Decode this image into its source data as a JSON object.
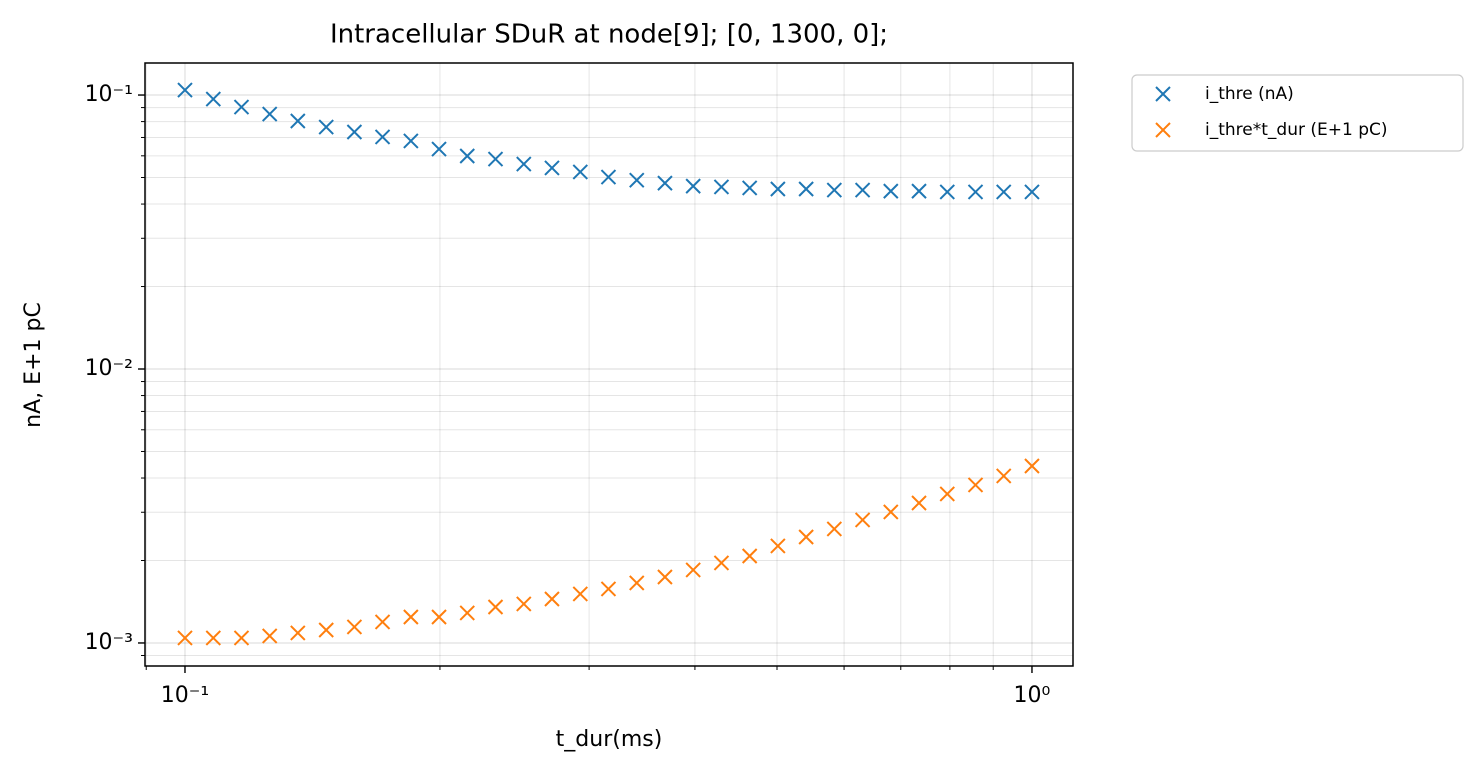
{
  "chart_data": {
    "type": "scatter",
    "title": "Intracellular SDuR at node[9]; [0, 1300, 0];",
    "x_label": "t_dur(ms)",
    "y_label": "nA, E+1 pC",
    "x_scale": "log",
    "y_scale": "log",
    "grid": true,
    "legend": "outside upper right",
    "x": [
      0.1,
      0.108,
      0.1166,
      0.1259,
      0.1359,
      0.1468,
      0.1585,
      0.1711,
      0.1848,
      0.1995,
      0.2154,
      0.2326,
      0.2512,
      0.2712,
      0.2929,
      0.3162,
      0.3415,
      0.3687,
      0.3981,
      0.4299,
      0.4642,
      0.5012,
      0.5412,
      0.5843,
      0.631,
      0.6813,
      0.7356,
      0.7943,
      0.8577,
      0.9261,
      1.0
    ],
    "series": [
      {
        "name": "i_thre (nA)",
        "color": "#1f77b4",
        "values": [
          0.1043,
          0.0967,
          0.0904,
          0.0852,
          0.0804,
          0.0764,
          0.0733,
          0.0703,
          0.068,
          0.0635,
          0.0599,
          0.0584,
          0.056,
          0.0542,
          0.0524,
          0.0502,
          0.0489,
          0.0477,
          0.0465,
          0.0462,
          0.0458,
          0.0454,
          0.0454,
          0.045,
          0.045,
          0.0446,
          0.0446,
          0.0443,
          0.0443,
          0.0443,
          0.0443
        ]
      },
      {
        "name": "i_thre*t_dur (E+1 pC)",
        "color": "#ff7f0e",
        "values": [
          0.001043,
          0.001043,
          0.001043,
          0.001061,
          0.001088,
          0.001115,
          0.001144,
          0.001193,
          0.001244,
          0.001244,
          0.001287,
          0.001353,
          0.001388,
          0.001447,
          0.00151,
          0.001575,
          0.001656,
          0.001741,
          0.001847,
          0.001959,
          0.002077,
          0.00226,
          0.002437,
          0.002607,
          0.002812,
          0.003007,
          0.003243,
          0.003499,
          0.003773,
          0.00407,
          0.004426
        ]
      }
    ],
    "xlim": [
      0.0897,
      1.118
    ],
    "ylim": [
      0.000824,
      0.1309
    ],
    "xticks": [
      {
        "value": 0.1,
        "label": "10⁻¹"
      },
      {
        "value": 1,
        "label": "10⁰"
      }
    ],
    "yticks": [
      {
        "value": 0.001,
        "label": "10⁻³"
      },
      {
        "value": 0.01,
        "label": "10⁻²"
      },
      {
        "value": 0.1,
        "label": "10⁻¹"
      }
    ],
    "xminorticks": [
      0.09,
      0.2,
      0.3,
      0.4,
      0.5,
      0.6,
      0.7,
      0.8,
      0.9
    ],
    "yminorticks": [
      0.0009,
      0.002,
      0.003,
      0.004,
      0.005,
      0.006,
      0.007,
      0.008,
      0.009,
      0.02,
      0.03,
      0.04,
      0.05,
      0.06,
      0.07,
      0.08,
      0.09
    ]
  }
}
